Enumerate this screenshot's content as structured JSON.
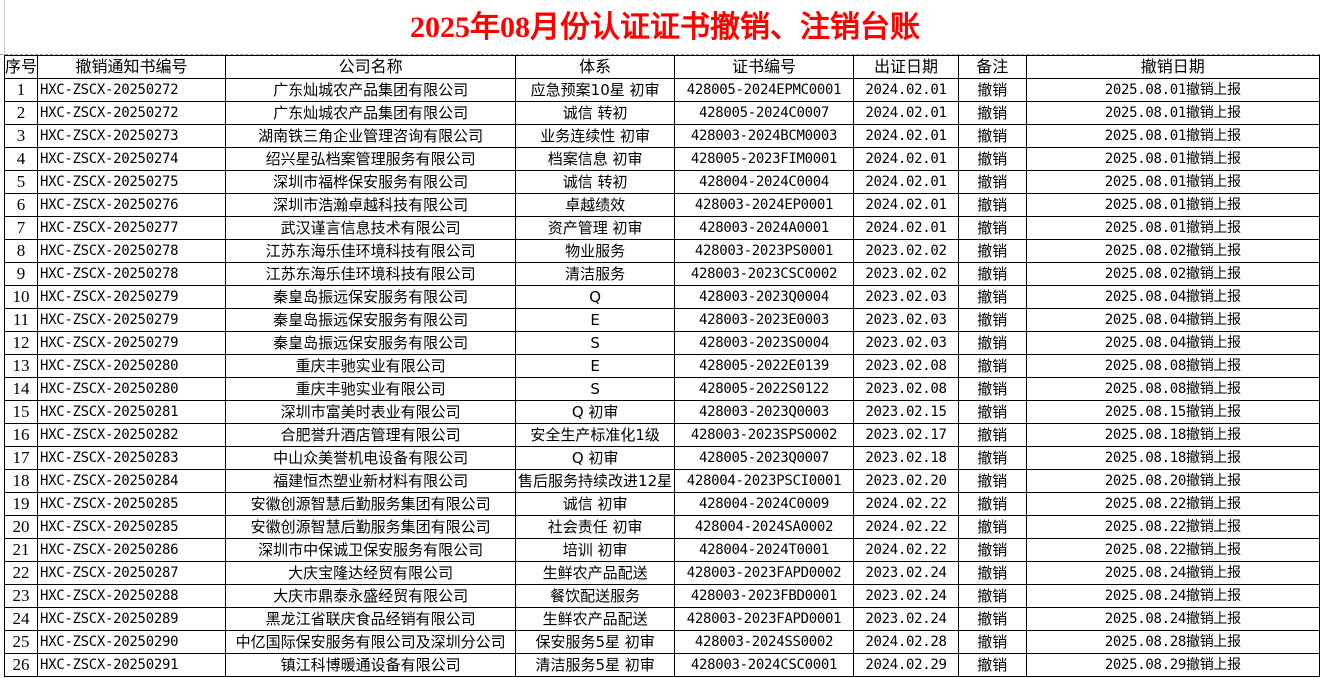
{
  "title": "2025年08月份认证证书撤销、注销台账",
  "headers": [
    "序号",
    "撤销通知书编号",
    "公司名称",
    "体系",
    "证书编号",
    "出证日期",
    "备注",
    "撤销日期"
  ],
  "rows": [
    [
      "1",
      "HXC-ZSCX-20250272",
      "广东灿城农产品集团有限公司",
      "应急预案10星  初审",
      "428005-2024EPMC0001",
      "2024.02.01",
      "撤销",
      "2025.08.01撤销上报"
    ],
    [
      "2",
      "HXC-ZSCX-20250272",
      "广东灿城农产品集团有限公司",
      "诚信  转初",
      "428005-2024C0007",
      "2024.02.01",
      "撤销",
      "2025.08.01撤销上报"
    ],
    [
      "3",
      "HXC-ZSCX-20250273",
      "湖南铁三角企业管理咨询有限公司",
      "业务连续性  初审",
      "428003-2024BCM0003",
      "2024.02.01",
      "撤销",
      "2025.08.01撤销上报"
    ],
    [
      "4",
      "HXC-ZSCX-20250274",
      "绍兴星弘档案管理服务有限公司",
      "档案信息  初审",
      "428005-2023FIM0001",
      "2024.02.01",
      "撤销",
      "2025.08.01撤销上报"
    ],
    [
      "5",
      "HXC-ZSCX-20250275",
      "深圳市福桦保安服务有限公司",
      "诚信  转初",
      "428004-2024C0004",
      "2024.02.01",
      "撤销",
      "2025.08.01撤销上报"
    ],
    [
      "6",
      "HXC-ZSCX-20250276",
      "深圳市浩瀚卓越科技有限公司",
      "卓越绩效",
      "428003-2024EP0001",
      "2024.02.01",
      "撤销",
      "2025.08.01撤销上报"
    ],
    [
      "7",
      "HXC-ZSCX-20250277",
      "武汉谨言信息技术有限公司",
      "资产管理  初审",
      "428003-2024A0001",
      "2024.02.01",
      "撤销",
      "2025.08.01撤销上报"
    ],
    [
      "8",
      "HXC-ZSCX-20250278",
      "江苏东海乐佳环境科技有限公司",
      "物业服务",
      "428003-2023PS0001",
      "2023.02.02",
      "撤销",
      "2025.08.02撤销上报"
    ],
    [
      "9",
      "HXC-ZSCX-20250278",
      "江苏东海乐佳环境科技有限公司",
      "清洁服务",
      "428003-2023CSC0002",
      "2023.02.02",
      "撤销",
      "2025.08.02撤销上报"
    ],
    [
      "10",
      "HXC-ZSCX-20250279",
      "秦皇岛振远保安服务有限公司",
      "Q",
      "428003-2023Q0004",
      "2023.02.03",
      "撤销",
      "2025.08.04撤销上报"
    ],
    [
      "11",
      "HXC-ZSCX-20250279",
      "秦皇岛振远保安服务有限公司",
      "E",
      "428003-2023E0003",
      "2023.02.03",
      "撤销",
      "2025.08.04撤销上报"
    ],
    [
      "12",
      "HXC-ZSCX-20250279",
      "秦皇岛振远保安服务有限公司",
      "S",
      "428003-2023S0004",
      "2023.02.03",
      "撤销",
      "2025.08.04撤销上报"
    ],
    [
      "13",
      "HXC-ZSCX-20250280",
      "重庆丰驰实业有限公司",
      "E",
      "428005-2022E0139",
      "2023.02.08",
      "撤销",
      "2025.08.08撤销上报"
    ],
    [
      "14",
      "HXC-ZSCX-20250280",
      "重庆丰驰实业有限公司",
      "S",
      "428005-2022S0122",
      "2023.02.08",
      "撤销",
      "2025.08.08撤销上报"
    ],
    [
      "15",
      "HXC-ZSCX-20250281",
      "深圳市富美时表业有限公司",
      "Q  初审",
      "428003-2023Q0003",
      "2023.02.15",
      "撤销",
      "2025.08.15撤销上报"
    ],
    [
      "16",
      "HXC-ZSCX-20250282",
      "合肥誉升酒店管理有限公司",
      "安全生产标准化1级",
      "428003-2023SPS0002",
      "2023.02.17",
      "撤销",
      "2025.08.18撤销上报"
    ],
    [
      "17",
      "HXC-ZSCX-20250283",
      "中山众美誉机电设备有限公司",
      "Q  初审",
      "428005-2023Q0007",
      "2023.02.18",
      "撤销",
      "2025.08.18撤销上报"
    ],
    [
      "18",
      "HXC-ZSCX-20250284",
      "福建恒杰塑业新材料有限公司",
      "售后服务持续改进12星",
      "428004-2023PSCI0001",
      "2023.02.20",
      "撤销",
      "2025.08.20撤销上报"
    ],
    [
      "19",
      "HXC-ZSCX-20250285",
      "安徽创源智慧后勤服务集团有限公司",
      "诚信  初审",
      "428004-2024C0009",
      "2024.02.22",
      "撤销",
      "2025.08.22撤销上报"
    ],
    [
      "20",
      "HXC-ZSCX-20250285",
      "安徽创源智慧后勤服务集团有限公司",
      "社会责任  初审",
      "428004-2024SA0002",
      "2024.02.22",
      "撤销",
      "2025.08.22撤销上报"
    ],
    [
      "21",
      "HXC-ZSCX-20250286",
      "深圳市中保诚卫保安服务有限公司",
      "培训  初审",
      "428004-2024T0001",
      "2024.02.22",
      "撤销",
      "2025.08.22撤销上报"
    ],
    [
      "22",
      "HXC-ZSCX-20250287",
      "大庆宝隆达经贸有限公司",
      "生鲜农产品配送",
      "428003-2023FAPD0002",
      "2023.02.24",
      "撤销",
      "2025.08.24撤销上报"
    ],
    [
      "23",
      "HXC-ZSCX-20250288",
      "大庆市鼎泰永盛经贸有限公司",
      "餐饮配送服务",
      "428003-2023FBD0001",
      "2023.02.24",
      "撤销",
      "2025.08.24撤销上报"
    ],
    [
      "24",
      "HXC-ZSCX-20250289",
      "黑龙江省联庆食品经销有限公司",
      "生鲜农产品配送",
      "428003-2023FAPD0001",
      "2023.02.24",
      "撤销",
      "2025.08.24撤销上报"
    ],
    [
      "25",
      "HXC-ZSCX-20250290",
      "中亿国际保安服务有限公司及深圳分公司",
      "保安服务5星  初审",
      "428003-2024SS0002",
      "2024.02.28",
      "撤销",
      "2025.08.28撤销上报"
    ],
    [
      "26",
      "HXC-ZSCX-20250291",
      "镇江科博暖通设备有限公司",
      "清洁服务5星  初审",
      "428003-2024CSC0001",
      "2024.02.29",
      "撤销",
      "2025.08.29撤销上报"
    ]
  ]
}
